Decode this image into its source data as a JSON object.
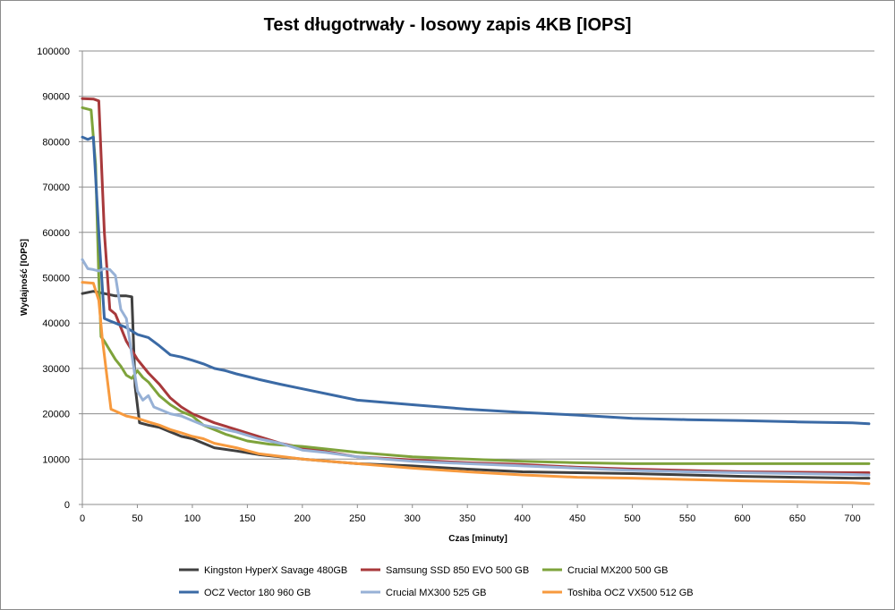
{
  "chart_data": {
    "type": "line",
    "title": "Test długotrwały - losowy zapis 4KB [IOPS]",
    "xlabel": "Czas [minuty]",
    "ylabel": "Wydajność [IOPS]",
    "xlim": [
      0,
      720
    ],
    "ylim": [
      0,
      100000
    ],
    "x_ticks": [
      0,
      50,
      100,
      150,
      200,
      250,
      300,
      350,
      400,
      450,
      500,
      550,
      600,
      650,
      700
    ],
    "y_ticks": [
      0,
      10000,
      20000,
      30000,
      40000,
      50000,
      60000,
      70000,
      80000,
      90000,
      100000
    ],
    "grid": "horizontal",
    "legend_position": "bottom",
    "series": [
      {
        "name": "Kingston HyperX Savage 480GB",
        "color": "#404040",
        "points": [
          [
            0,
            46500
          ],
          [
            10,
            47000
          ],
          [
            20,
            46500
          ],
          [
            30,
            46000
          ],
          [
            40,
            46000
          ],
          [
            45,
            45800
          ],
          [
            48,
            26000
          ],
          [
            52,
            18000
          ],
          [
            60,
            17500
          ],
          [
            70,
            17000
          ],
          [
            80,
            16000
          ],
          [
            90,
            15000
          ],
          [
            100,
            14500
          ],
          [
            120,
            12500
          ],
          [
            140,
            11800
          ],
          [
            160,
            11000
          ],
          [
            200,
            10000
          ],
          [
            250,
            9000
          ],
          [
            300,
            8500
          ],
          [
            350,
            7800
          ],
          [
            400,
            7200
          ],
          [
            450,
            7000
          ],
          [
            500,
            6800
          ],
          [
            550,
            6500
          ],
          [
            600,
            6200
          ],
          [
            650,
            6000
          ],
          [
            700,
            5800
          ],
          [
            715,
            5800
          ]
        ]
      },
      {
        "name": "Samsung SSD 850 EVO 500 GB",
        "color": "#a8393b",
        "points": [
          [
            0,
            89500
          ],
          [
            10,
            89400
          ],
          [
            15,
            89000
          ],
          [
            20,
            60000
          ],
          [
            25,
            43000
          ],
          [
            30,
            42000
          ],
          [
            40,
            36000
          ],
          [
            50,
            32000
          ],
          [
            60,
            29000
          ],
          [
            70,
            26500
          ],
          [
            80,
            23500
          ],
          [
            90,
            21500
          ],
          [
            100,
            20000
          ],
          [
            120,
            18000
          ],
          [
            140,
            16500
          ],
          [
            160,
            15000
          ],
          [
            180,
            13500
          ],
          [
            200,
            12500
          ],
          [
            250,
            10500
          ],
          [
            300,
            9800
          ],
          [
            350,
            9200
          ],
          [
            400,
            8800
          ],
          [
            450,
            8200
          ],
          [
            500,
            7800
          ],
          [
            550,
            7500
          ],
          [
            600,
            7200
          ],
          [
            650,
            7100
          ],
          [
            700,
            7000
          ],
          [
            715,
            7000
          ]
        ]
      },
      {
        "name": "Crucial MX200 500 GB",
        "color": "#7ea33b",
        "points": [
          [
            0,
            87500
          ],
          [
            8,
            87000
          ],
          [
            12,
            75000
          ],
          [
            15,
            50000
          ],
          [
            17,
            37000
          ],
          [
            20,
            36000
          ],
          [
            25,
            34000
          ],
          [
            30,
            32000
          ],
          [
            35,
            30500
          ],
          [
            40,
            28500
          ],
          [
            45,
            27800
          ],
          [
            50,
            29500
          ],
          [
            55,
            28000
          ],
          [
            60,
            27000
          ],
          [
            70,
            24000
          ],
          [
            80,
            22000
          ],
          [
            90,
            20500
          ],
          [
            100,
            19500
          ],
          [
            110,
            17500
          ],
          [
            130,
            15500
          ],
          [
            150,
            14000
          ],
          [
            170,
            13300
          ],
          [
            200,
            12800
          ],
          [
            250,
            11500
          ],
          [
            300,
            10500
          ],
          [
            350,
            10000
          ],
          [
            400,
            9500
          ],
          [
            450,
            9200
          ],
          [
            500,
            9000
          ],
          [
            550,
            9000
          ],
          [
            600,
            9000
          ],
          [
            650,
            9000
          ],
          [
            700,
            9000
          ],
          [
            715,
            9000
          ]
        ]
      },
      {
        "name": "OCZ Vector 180 960 GB",
        "color": "#3b6aa5",
        "points": [
          [
            0,
            81000
          ],
          [
            5,
            80500
          ],
          [
            10,
            81000
          ],
          [
            15,
            60000
          ],
          [
            20,
            41000
          ],
          [
            25,
            40500
          ],
          [
            30,
            40000
          ],
          [
            40,
            39000
          ],
          [
            50,
            37500
          ],
          [
            60,
            36800
          ],
          [
            70,
            35000
          ],
          [
            80,
            33000
          ],
          [
            90,
            32500
          ],
          [
            100,
            31800
          ],
          [
            110,
            31000
          ],
          [
            120,
            30000
          ],
          [
            130,
            29500
          ],
          [
            140,
            28800
          ],
          [
            150,
            28200
          ],
          [
            160,
            27600
          ],
          [
            180,
            26500
          ],
          [
            200,
            25500
          ],
          [
            250,
            23000
          ],
          [
            300,
            22000
          ],
          [
            350,
            21000
          ],
          [
            400,
            20300
          ],
          [
            450,
            19700
          ],
          [
            500,
            19000
          ],
          [
            550,
            18700
          ],
          [
            600,
            18500
          ],
          [
            650,
            18200
          ],
          [
            700,
            18000
          ],
          [
            715,
            17800
          ]
        ]
      },
      {
        "name": "Crucial MX300 525 GB",
        "color": "#97b1d6",
        "points": [
          [
            0,
            54000
          ],
          [
            5,
            52000
          ],
          [
            10,
            51800
          ],
          [
            15,
            51500
          ],
          [
            20,
            52000
          ],
          [
            25,
            51800
          ],
          [
            30,
            50500
          ],
          [
            35,
            43000
          ],
          [
            40,
            41000
          ],
          [
            45,
            33000
          ],
          [
            50,
            25000
          ],
          [
            55,
            23000
          ],
          [
            60,
            24000
          ],
          [
            65,
            21500
          ],
          [
            70,
            21000
          ],
          [
            80,
            20000
          ],
          [
            90,
            19500
          ],
          [
            100,
            18500
          ],
          [
            110,
            17500
          ],
          [
            120,
            17000
          ],
          [
            140,
            16000
          ],
          [
            160,
            14500
          ],
          [
            180,
            13500
          ],
          [
            200,
            12000
          ],
          [
            220,
            11500
          ],
          [
            250,
            10500
          ],
          [
            300,
            9500
          ],
          [
            350,
            9000
          ],
          [
            400,
            8500
          ],
          [
            450,
            8000
          ],
          [
            500,
            7500
          ],
          [
            550,
            7200
          ],
          [
            600,
            7000
          ],
          [
            650,
            6800
          ],
          [
            700,
            6600
          ],
          [
            715,
            6500
          ]
        ]
      },
      {
        "name": "Toshiba OCZ VX500 512 GB",
        "color": "#f79a3e",
        "points": [
          [
            0,
            49000
          ],
          [
            10,
            48800
          ],
          [
            15,
            45000
          ],
          [
            18,
            37000
          ],
          [
            22,
            29000
          ],
          [
            26,
            21000
          ],
          [
            30,
            20600
          ],
          [
            40,
            19500
          ],
          [
            50,
            19000
          ],
          [
            60,
            18200
          ],
          [
            70,
            17500
          ],
          [
            80,
            16500
          ],
          [
            90,
            15800
          ],
          [
            100,
            15000
          ],
          [
            110,
            14500
          ],
          [
            120,
            13500
          ],
          [
            140,
            12500
          ],
          [
            160,
            11200
          ],
          [
            200,
            10000
          ],
          [
            250,
            9000
          ],
          [
            300,
            8000
          ],
          [
            350,
            7200
          ],
          [
            400,
            6500
          ],
          [
            450,
            6000
          ],
          [
            500,
            5800
          ],
          [
            550,
            5500
          ],
          [
            600,
            5200
          ],
          [
            650,
            5000
          ],
          [
            700,
            4800
          ],
          [
            715,
            4600
          ]
        ]
      }
    ]
  }
}
